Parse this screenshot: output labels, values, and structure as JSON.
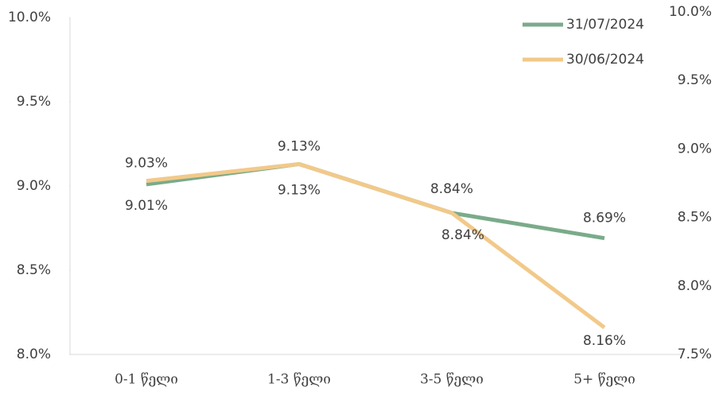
{
  "chart_data": {
    "type": "line",
    "categories": [
      "0-1 წელი",
      "1-3 წელი",
      "3-5 წელი",
      "5+ წელი"
    ],
    "series": [
      {
        "name": "31/07/2024",
        "color": "#7aab8a",
        "values": [
          9.01,
          9.13,
          8.84,
          8.69
        ],
        "value_labels": [
          "9.01%",
          "9.13%",
          "8.84%",
          "8.69%"
        ]
      },
      {
        "name": "30/06/2024",
        "color": "#f2c98a",
        "values": [
          9.03,
          9.13,
          8.84,
          8.16
        ],
        "value_labels": [
          "9.03%",
          "9.13%",
          "8.84%",
          "8.16%"
        ]
      }
    ],
    "ylim": [
      8.0,
      10.0
    ],
    "yticks": [
      {
        "value": 8.0,
        "label": "8.0%"
      },
      {
        "value": 8.5,
        "label": "8.5%"
      },
      {
        "value": 9.0,
        "label": "9.0%"
      },
      {
        "value": 9.5,
        "label": "9.5%"
      },
      {
        "value": 10.0,
        "label": "10.0%"
      }
    ],
    "y2lim": [
      7.5,
      10.0
    ],
    "y2ticks": [
      {
        "value": 7.5,
        "label": "7.5%"
      },
      {
        "value": 8.0,
        "label": "8.0%"
      },
      {
        "value": 8.5,
        "label": "8.5%"
      },
      {
        "value": 9.0,
        "label": "9.0%"
      },
      {
        "value": 9.5,
        "label": "9.5%"
      },
      {
        "value": 10.0,
        "label": "10.0%"
      }
    ],
    "legend": "top-right"
  }
}
